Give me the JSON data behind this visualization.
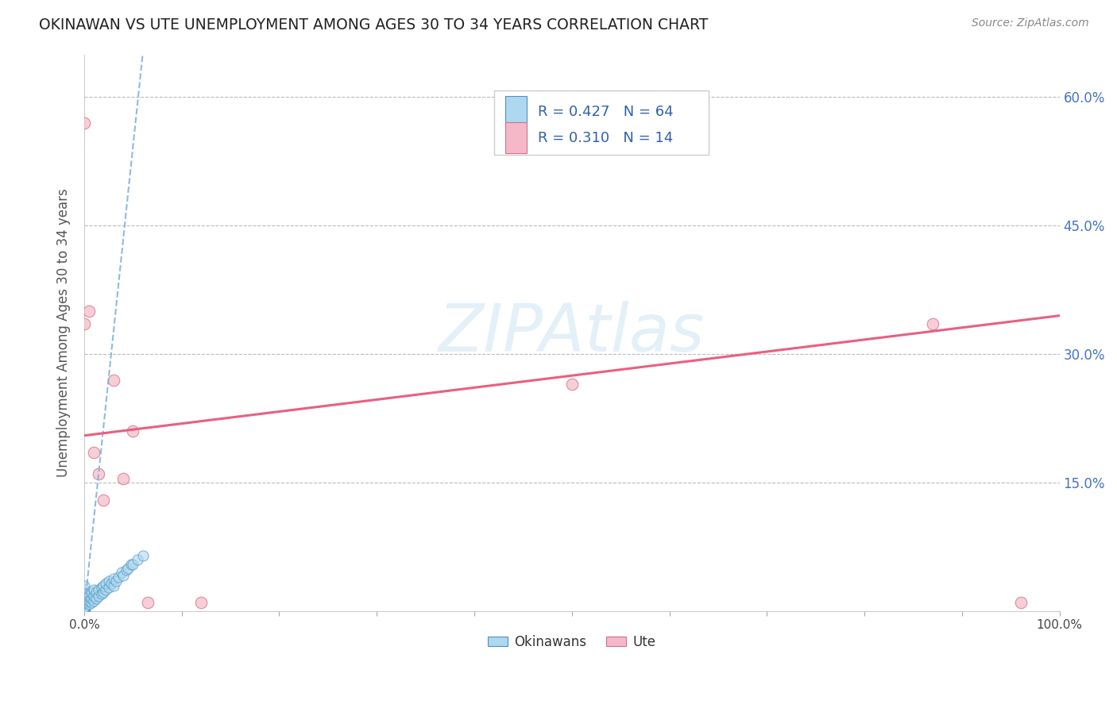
{
  "title": "OKINAWAN VS UTE UNEMPLOYMENT AMONG AGES 30 TO 34 YEARS CORRELATION CHART",
  "source": "Source: ZipAtlas.com",
  "ylabel": "Unemployment Among Ages 30 to 34 years",
  "xlim": [
    0.0,
    1.0
  ],
  "ylim": [
    0.0,
    0.65
  ],
  "xticks": [
    0.0,
    0.1,
    0.2,
    0.3,
    0.4,
    0.5,
    0.6,
    0.7,
    0.8,
    0.9,
    1.0
  ],
  "xticklabels": [
    "0.0%",
    "",
    "",
    "",
    "",
    "",
    "",
    "",
    "",
    "",
    "100.0%"
  ],
  "ytick_positions": [
    0.15,
    0.3,
    0.45,
    0.6
  ],
  "yticklabels": [
    "15.0%",
    "30.0%",
    "45.0%",
    "60.0%"
  ],
  "blue_R": 0.427,
  "blue_N": 64,
  "pink_R": 0.31,
  "pink_N": 14,
  "blue_color": "#add8f0",
  "pink_color": "#f4b8c8",
  "trend_blue_color": "#7ab0d8",
  "trend_pink_color": "#e86080",
  "legend_label_blue": "Okinawans",
  "legend_label_pink": "Ute",
  "watermark": "ZIPAtlas",
  "blue_points_x": [
    0.0,
    0.0,
    0.0,
    0.0,
    0.0,
    0.0,
    0.0,
    0.0,
    0.0,
    0.0,
    0.0,
    0.0,
    0.0,
    0.0,
    0.0,
    0.0,
    0.0,
    0.0,
    0.0,
    0.0,
    0.0,
    0.0,
    0.0,
    0.0,
    0.0,
    0.0,
    0.0,
    0.0,
    0.0,
    0.0,
    0.005,
    0.005,
    0.005,
    0.007,
    0.007,
    0.007,
    0.01,
    0.01,
    0.01,
    0.012,
    0.012,
    0.015,
    0.015,
    0.018,
    0.018,
    0.02,
    0.02,
    0.022,
    0.022,
    0.025,
    0.025,
    0.028,
    0.03,
    0.03,
    0.033,
    0.035,
    0.038,
    0.04,
    0.043,
    0.045,
    0.048,
    0.05,
    0.055,
    0.06
  ],
  "blue_points_y": [
    0.0,
    0.0,
    0.0,
    0.0,
    0.0,
    0.0,
    0.0,
    0.0,
    0.0,
    0.0,
    0.0,
    0.0,
    0.0,
    0.0,
    0.0,
    0.005,
    0.005,
    0.005,
    0.01,
    0.01,
    0.01,
    0.015,
    0.015,
    0.02,
    0.025,
    0.03,
    0.005,
    0.01,
    0.015,
    0.02,
    0.008,
    0.012,
    0.018,
    0.01,
    0.015,
    0.022,
    0.012,
    0.018,
    0.025,
    0.015,
    0.022,
    0.018,
    0.025,
    0.02,
    0.028,
    0.022,
    0.03,
    0.025,
    0.032,
    0.028,
    0.035,
    0.032,
    0.03,
    0.038,
    0.035,
    0.04,
    0.045,
    0.042,
    0.048,
    0.05,
    0.055,
    0.055,
    0.06,
    0.065
  ],
  "pink_points_x": [
    0.0,
    0.0,
    0.005,
    0.01,
    0.015,
    0.02,
    0.03,
    0.04,
    0.05,
    0.065,
    0.12,
    0.5,
    0.87,
    0.96
  ],
  "pink_points_y": [
    0.57,
    0.335,
    0.35,
    0.185,
    0.16,
    0.13,
    0.27,
    0.155,
    0.21,
    0.01,
    0.01,
    0.265,
    0.335,
    0.01
  ],
  "blue_trendline_x": [
    0.0,
    0.06
  ],
  "blue_trendline_y": [
    0.0,
    0.65
  ],
  "pink_trendline_x": [
    0.0,
    1.0
  ],
  "pink_trendline_y": [
    0.205,
    0.345
  ]
}
